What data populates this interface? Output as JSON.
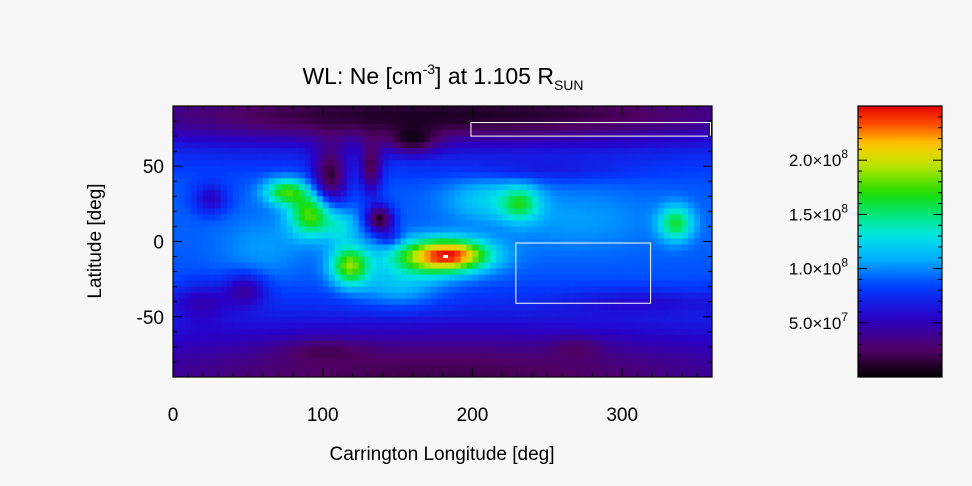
{
  "chart_data": {
    "type": "heatmap",
    "title": {
      "prefix": "WL: Ne [cm",
      "prefix_sup": "-3",
      "middle": "] at 1.105 R",
      "suffix_sub": "SUN"
    },
    "xlabel": "Carrington Longitude [deg]",
    "ylabel": "Latitude [deg]",
    "xlim": [
      0,
      360
    ],
    "ylim": [
      -90,
      90
    ],
    "x_ticks": [
      0,
      100,
      200,
      300
    ],
    "y_ticks": [
      50,
      0,
      -50
    ],
    "x_tick_labels": [
      "0",
      "100",
      "200",
      "300"
    ],
    "y_tick_labels": [
      "50",
      "0",
      "-50"
    ],
    "colormap": "rainbow",
    "colorbar": {
      "range": [
        0,
        250000000
      ],
      "ticks": [
        {
          "value": 50000000,
          "mantissa": "5.0",
          "times": "×10",
          "exp": "7"
        },
        {
          "value": 100000000,
          "mantissa": "1.0",
          "times": "×10",
          "exp": "8"
        },
        {
          "value": 150000000,
          "mantissa": "1.5",
          "times": "×10",
          "exp": "8"
        },
        {
          "value": 200000000,
          "mantissa": "2.0",
          "times": "×10",
          "exp": "8"
        }
      ]
    },
    "background_level": 90000000,
    "features": [
      {
        "lon": 180,
        "lat": 90,
        "w": 220,
        "h": 22,
        "amp": -65000000
      },
      {
        "lon": 180,
        "lat": -90,
        "w": 220,
        "h": 28,
        "amp": -70000000
      },
      {
        "lon": 180,
        "lat": 80,
        "w": 160,
        "h": 9,
        "amp": -20000000
      },
      {
        "lon": 160,
        "lat": 66,
        "w": 12,
        "h": 6,
        "amp": -40000000
      },
      {
        "lon": 100,
        "lat": -72,
        "w": 20,
        "h": 5,
        "amp": -15000000
      },
      {
        "lon": 270,
        "lat": -70,
        "w": 12,
        "h": 5,
        "amp": -15000000
      },
      {
        "lon": 178,
        "lat": -10,
        "w": 22,
        "h": 8,
        "amp": 130000000
      },
      {
        "lon": 190,
        "lat": -8,
        "w": 14,
        "h": 6,
        "amp": 40000000
      },
      {
        "lon": 118,
        "lat": -16,
        "w": 9,
        "h": 9,
        "amp": 95000000
      },
      {
        "lon": 92,
        "lat": 18,
        "w": 10,
        "h": 10,
        "amp": 90000000
      },
      {
        "lon": 75,
        "lat": 33,
        "w": 10,
        "h": 6,
        "amp": 80000000
      },
      {
        "lon": 112,
        "lat": 10,
        "w": 8,
        "h": 8,
        "amp": 35000000
      },
      {
        "lon": 336,
        "lat": 12,
        "w": 8,
        "h": 8,
        "amp": 70000000
      },
      {
        "lon": 232,
        "lat": 25,
        "w": 9,
        "h": 8,
        "amp": 55000000
      },
      {
        "lon": 210,
        "lat": 28,
        "w": 20,
        "h": 10,
        "amp": 30000000
      },
      {
        "lon": 270,
        "lat": 15,
        "w": 35,
        "h": 15,
        "amp": 15000000
      },
      {
        "lon": 150,
        "lat": -30,
        "w": 20,
        "h": 10,
        "amp": 30000000
      },
      {
        "lon": 60,
        "lat": -5,
        "w": 20,
        "h": 15,
        "amp": 15000000
      },
      {
        "lon": 105,
        "lat": 42,
        "w": 8,
        "h": 14,
        "amp": -70000000
      },
      {
        "lon": 132,
        "lat": 48,
        "w": 5,
        "h": 12,
        "amp": -60000000
      },
      {
        "lon": 138,
        "lat": 15,
        "w": 6,
        "h": 6,
        "amp": -80000000
      },
      {
        "lon": 145,
        "lat": 2,
        "w": 6,
        "h": 5,
        "amp": -25000000
      },
      {
        "lon": 25,
        "lat": 28,
        "w": 8,
        "h": 7,
        "amp": -35000000
      },
      {
        "lon": 48,
        "lat": -32,
        "w": 10,
        "h": 8,
        "amp": -40000000
      },
      {
        "lon": 20,
        "lat": -40,
        "w": 12,
        "h": 10,
        "amp": -25000000
      },
      {
        "lon": 315,
        "lat": -40,
        "w": 40,
        "h": 6,
        "amp": -20000000
      },
      {
        "lon": 250,
        "lat": 47,
        "w": 40,
        "h": 5,
        "amp": -15000000
      }
    ],
    "overlays": [
      {
        "name": "box-north",
        "lon0": 199,
        "lon1": 359,
        "lat0": 70,
        "lat1": 79
      },
      {
        "name": "box-east",
        "lon0": 229,
        "lon1": 319,
        "lat0": -41,
        "lat1": -1
      }
    ],
    "marker": {
      "lon": 182,
      "lat": -10
    }
  }
}
